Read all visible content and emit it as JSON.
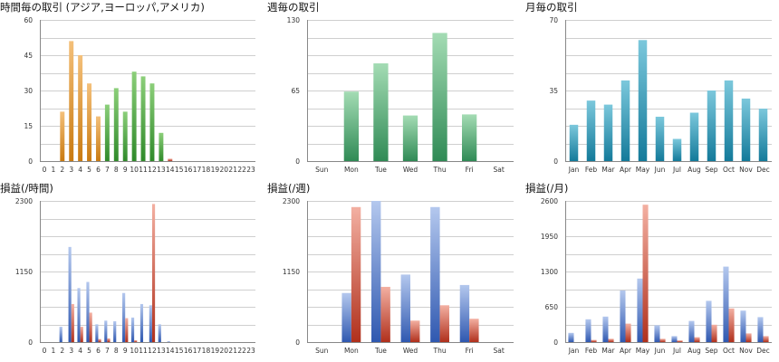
{
  "colors": {
    "orange_top": "#f4c07a",
    "orange_bottom": "#c97a10",
    "green_top": "#8ccf7a",
    "green_bottom": "#2f8a2a",
    "weekly_top": "#a4dcb4",
    "weekly_bottom": "#2f8a55",
    "monthly_top": "#7cc8dc",
    "monthly_bottom": "#137a9a",
    "blue_top": "#b4c8ee",
    "blue_bottom": "#2f58b0",
    "red_top": "#f3b0a2",
    "red_bottom": "#b0301c",
    "grid": "#cfcfcf",
    "axis": "#888888"
  },
  "chart_data": [
    {
      "id": "hourly-trades",
      "type": "bar",
      "title": "時間毎の取引 (アジア,ヨーロッパ,アメリカ)",
      "categories": [
        "0",
        "1",
        "2",
        "3",
        "4",
        "5",
        "6",
        "7",
        "8",
        "9",
        "10",
        "11",
        "12",
        "13",
        "14",
        "15",
        "16",
        "17",
        "18",
        "19",
        "20",
        "21",
        "22",
        "23"
      ],
      "values": [
        0,
        0,
        21,
        51,
        45,
        33,
        19,
        24,
        31,
        21,
        38,
        36,
        33,
        12,
        1,
        0,
        0,
        0,
        0,
        0,
        0,
        0,
        0,
        0
      ],
      "bar_colors": [
        "orange",
        "orange",
        "orange",
        "orange",
        "orange",
        "orange",
        "orange",
        "green",
        "green",
        "green",
        "green",
        "green",
        "green",
        "green",
        "red",
        "red",
        "red",
        "red",
        "red",
        "red",
        "red",
        "red",
        "red",
        "red"
      ],
      "ylim": [
        0,
        60
      ],
      "yticks": [
        0,
        15,
        30,
        45,
        60
      ],
      "grid": true
    },
    {
      "id": "weekly-trades",
      "type": "bar",
      "title": "週毎の取引",
      "categories": [
        "Sun",
        "Mon",
        "Tue",
        "Wed",
        "Thu",
        "Fri",
        "Sat"
      ],
      "values": [
        0,
        64,
        90,
        42,
        118,
        43,
        0
      ],
      "ylim": [
        0,
        130
      ],
      "yticks": [
        0,
        65,
        130
      ],
      "grid": true
    },
    {
      "id": "monthly-trades",
      "type": "bar",
      "title": "月毎の取引",
      "categories": [
        "Jan",
        "Feb",
        "Mar",
        "Apr",
        "May",
        "Jun",
        "Jul",
        "Aug",
        "Sep",
        "Oct",
        "Nov",
        "Dec"
      ],
      "values": [
        18,
        30,
        28,
        40,
        60,
        22,
        11,
        24,
        35,
        40,
        31,
        26
      ],
      "ylim": [
        0,
        70
      ],
      "yticks": [
        0,
        35,
        70
      ],
      "grid": true
    },
    {
      "id": "hourly-pnl",
      "type": "bar",
      "title": "損益(/時間)",
      "categories": [
        "0",
        "1",
        "2",
        "3",
        "4",
        "5",
        "6",
        "7",
        "8",
        "9",
        "10",
        "11",
        "12",
        "13",
        "14",
        "15",
        "16",
        "17",
        "18",
        "19",
        "20",
        "21",
        "22",
        "23"
      ],
      "series": [
        {
          "color": "blue",
          "values": [
            0,
            0,
            250,
            1550,
            880,
            980,
            290,
            350,
            340,
            800,
            400,
            620,
            600,
            290,
            10,
            0,
            0,
            0,
            0,
            0,
            0,
            0,
            0,
            0
          ]
        },
        {
          "color": "red",
          "values": [
            0,
            0,
            0,
            620,
            250,
            480,
            50,
            60,
            0,
            390,
            30,
            0,
            2250,
            0,
            0,
            0,
            0,
            0,
            0,
            0,
            0,
            0,
            0,
            0
          ]
        }
      ],
      "ylim": [
        0,
        2300
      ],
      "yticks": [
        0,
        1150,
        2300
      ],
      "grid": true
    },
    {
      "id": "weekly-pnl",
      "type": "bar",
      "title": "損益(/週)",
      "categories": [
        "Sun",
        "Mon",
        "Tue",
        "Wed",
        "Thu",
        "Fri",
        "Sat"
      ],
      "series": [
        {
          "color": "blue",
          "values": [
            0,
            800,
            2300,
            1100,
            2200,
            930,
            0
          ]
        },
        {
          "color": "red",
          "values": [
            0,
            2200,
            900,
            350,
            600,
            380,
            0
          ]
        }
      ],
      "ylim": [
        0,
        2300
      ],
      "yticks": [
        0,
        1150,
        2300
      ],
      "grid": true
    },
    {
      "id": "monthly-pnl",
      "type": "bar",
      "title": "損益(/月)",
      "categories": [
        "Jan",
        "Feb",
        "Mar",
        "Apr",
        "May",
        "Jun",
        "Jul",
        "Aug",
        "Sep",
        "Oct",
        "Nov",
        "Dec"
      ],
      "series": [
        {
          "color": "blue",
          "values": [
            170,
            420,
            470,
            950,
            1170,
            310,
            110,
            390,
            760,
            1390,
            580,
            460
          ]
        },
        {
          "color": "red",
          "values": [
            0,
            40,
            60,
            340,
            2530,
            60,
            30,
            90,
            320,
            620,
            160,
            110
          ]
        }
      ],
      "ylim": [
        0,
        2600
      ],
      "yticks": [
        0,
        650,
        1300,
        1950,
        2600
      ],
      "grid": true
    }
  ]
}
